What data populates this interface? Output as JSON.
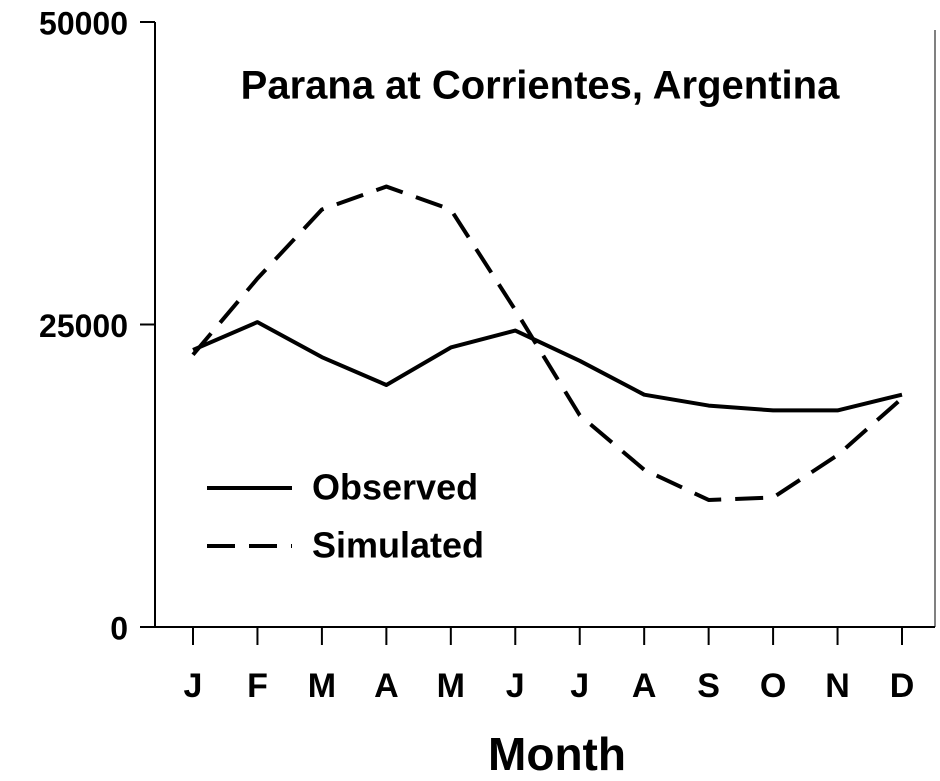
{
  "chart_data": {
    "type": "line",
    "title": "Parana at Corrientes, Argentina",
    "x_label": "Month",
    "categories": [
      "J",
      "F",
      "M",
      "A",
      "M",
      "J",
      "J",
      "A",
      "S",
      "O",
      "N",
      "D"
    ],
    "series": [
      {
        "name": "Observed",
        "color": "#000000",
        "dash": "solid",
        "values": [
          22900,
          25200,
          22300,
          20000,
          23100,
          24500,
          22000,
          19200,
          18300,
          17900,
          17900,
          19200
        ]
      },
      {
        "name": "Simulated",
        "color": "#000000",
        "dash": "dashed",
        "values": [
          22500,
          28800,
          34500,
          36400,
          34500,
          26200,
          17500,
          13000,
          10500,
          10700,
          14200,
          18900
        ]
      }
    ],
    "ylim": [
      0,
      50000
    ],
    "yticks": [
      0,
      25000,
      50000
    ],
    "grid": false,
    "legend": "lower left"
  }
}
